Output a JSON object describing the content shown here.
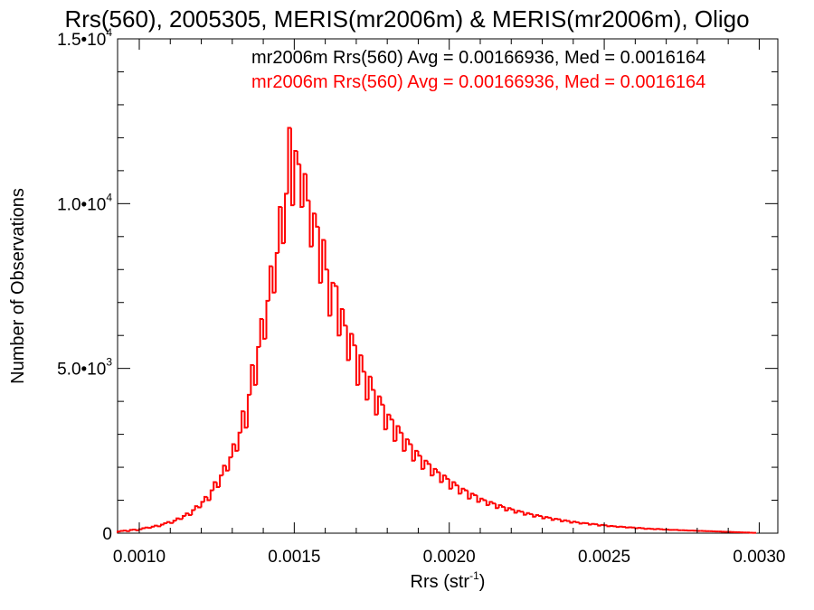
{
  "chart_data": {
    "type": "histogram",
    "title": "Rrs(560), 2005305, MERIS(mr2006m) & MERIS(mr2006m), Oligo",
    "xlabel_base": "Rrs (str",
    "xlabel_exp": "-1",
    "xlabel_close": ")",
    "ylabel": "Number of Observations",
    "xlim": [
      0.00093,
      0.00306
    ],
    "ylim": [
      0,
      15000
    ],
    "x_ticks": [
      0.001,
      0.0015,
      0.002,
      0.0025,
      0.003
    ],
    "x_tick_labels": [
      "0.0010",
      "0.0015",
      "0.0020",
      "0.0025",
      "0.0030"
    ],
    "y_ticks": [
      0,
      5000,
      10000,
      15000
    ],
    "y_tick_labels": [
      {
        "base": "0",
        "exp": ""
      },
      {
        "base": "5.0•10",
        "exp": "3"
      },
      {
        "base": "1.0•10",
        "exp": "4"
      },
      {
        "base": "1.5•10",
        "exp": "4"
      }
    ],
    "series": [
      {
        "name": "mr2006m Rrs(560) Avg = 0.00166936, Med = 0.0016164",
        "color": "#000000"
      },
      {
        "name": "mr2006m Rrs(560) Avg = 0.00166936, Med = 0.0016164",
        "color": "#ff0000"
      }
    ],
    "bin_width": 1e-05,
    "bin_start": 0.00093,
    "counts": [
      50,
      70,
      80,
      60,
      100,
      110,
      90,
      120,
      150,
      170,
      160,
      200,
      230,
      210,
      260,
      300,
      340,
      310,
      380,
      450,
      430,
      520,
      600,
      550,
      700,
      820,
      780,
      950,
      1100,
      1000,
      1300,
      1550,
      1400,
      1750,
      2050,
      1900,
      2300,
      2700,
      2500,
      3050,
      3700,
      3200,
      4200,
      5100,
      4500,
      5650,
      6500,
      5900,
      7050,
      8100,
      7300,
      8500,
      9900,
      8800,
      10300,
      12300,
      9950,
      11600,
      11200,
      9900,
      10900,
      10100,
      8700,
      9700,
      9300,
      7600,
      8900,
      8000,
      6600,
      7600,
      7500,
      6000,
      6800,
      6300,
      5250,
      6050,
      5700,
      4500,
      5400,
      4900,
      4050,
      4750,
      4350,
      3600,
      4150,
      3900,
      3150,
      3600,
      3450,
      2800,
      3250,
      3050,
      2500,
      2850,
      2700,
      2200,
      2500,
      2350,
      1950,
      2200,
      2100,
      1750,
      1950,
      1850,
      1550,
      1750,
      1650,
      1350,
      1550,
      1450,
      1200,
      1350,
      1300,
      1050,
      1200,
      1150,
      950,
      1050,
      1000,
      850,
      950,
      900,
      760,
      850,
      800,
      690,
      760,
      720,
      620,
      680,
      650,
      560,
      610,
      580,
      500,
      550,
      520,
      450,
      490,
      470,
      400,
      440,
      420,
      360,
      390,
      370,
      320,
      350,
      330,
      290,
      310,
      300,
      260,
      280,
      270,
      230,
      250,
      240,
      210,
      220,
      210,
      190,
      200,
      190,
      170,
      180,
      170,
      150,
      160,
      150,
      130,
      140,
      130,
      120,
      130,
      120,
      110,
      110,
      100,
      100,
      100,
      90,
      90,
      85,
      80,
      80,
      75,
      70,
      70,
      65,
      60,
      60,
      55,
      50,
      50,
      45,
      40,
      40,
      35,
      30,
      30,
      25,
      20,
      20,
      15,
      10
    ]
  }
}
